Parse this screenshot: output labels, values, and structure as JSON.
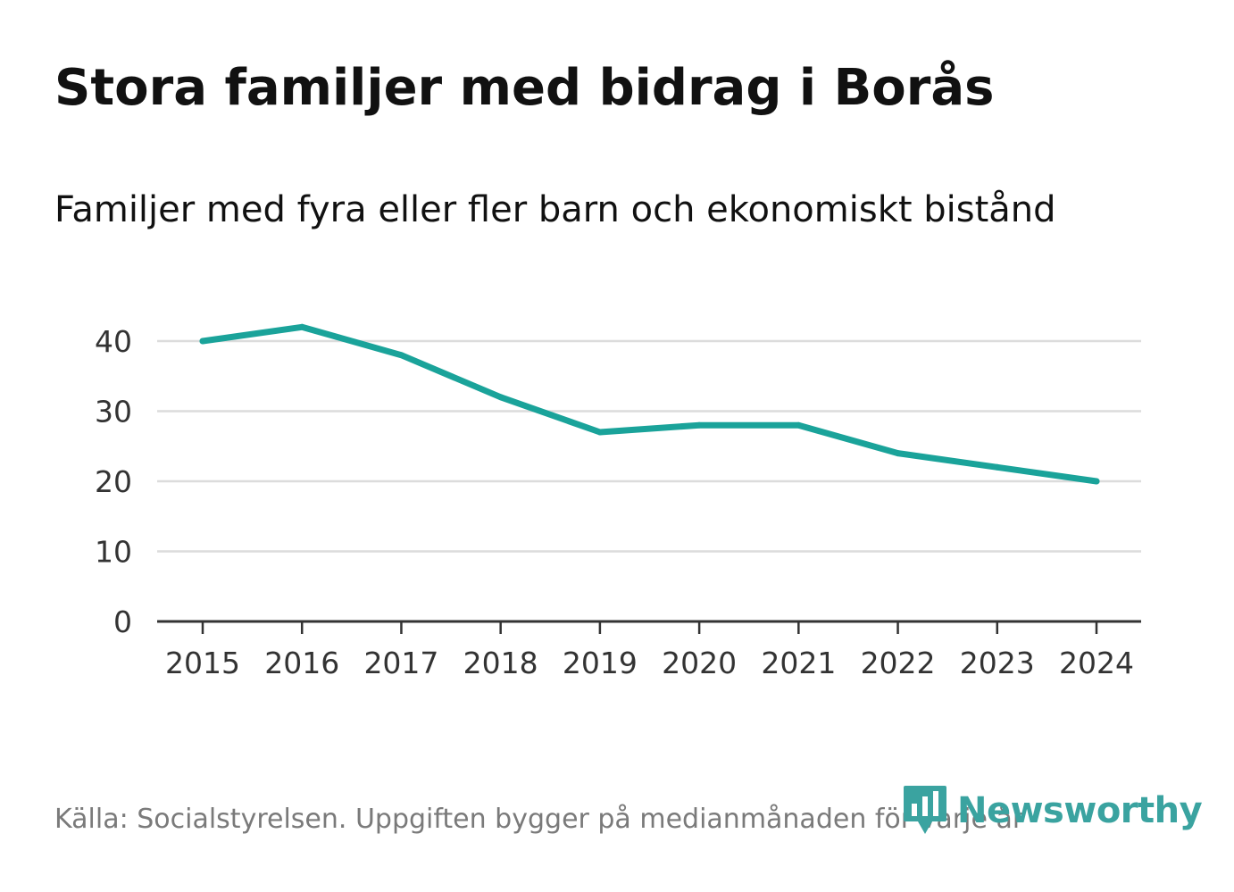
{
  "header": {
    "title": "Stora familjer med bidrag i Borås",
    "subtitle": "Familjer med fyra eller fler barn och ekonomiskt bistånd"
  },
  "footer": {
    "source": "Källa: Socialstyrelsen. Uppgiften bygger på medianmånaden för varje år"
  },
  "brand": {
    "name": "Newsworthy",
    "icon": "newsworthy-logo-icon",
    "color": "#3aa3a0"
  },
  "colors": {
    "line": "#1aa39a",
    "grid": "#dcdcdc",
    "axis": "#333333"
  },
  "chart_data": {
    "type": "line",
    "title": "Stora familjer med bidrag i Borås",
    "subtitle": "Familjer med fyra eller fler barn och ekonomiskt bistånd",
    "xlabel": "",
    "ylabel": "",
    "x": [
      "2015",
      "2016",
      "2017",
      "2018",
      "2019",
      "2020",
      "2021",
      "2022",
      "2023",
      "2024"
    ],
    "series": [
      {
        "name": "Familjer med fyra eller fler barn och ekonomiskt bistånd",
        "values": [
          40,
          42,
          38,
          32,
          27,
          28,
          28,
          24,
          22,
          20
        ]
      }
    ],
    "ylim": [
      0,
      40
    ],
    "yticks": [
      "0",
      "10",
      "20",
      "30",
      "40"
    ],
    "grid": true,
    "legend": "none"
  }
}
